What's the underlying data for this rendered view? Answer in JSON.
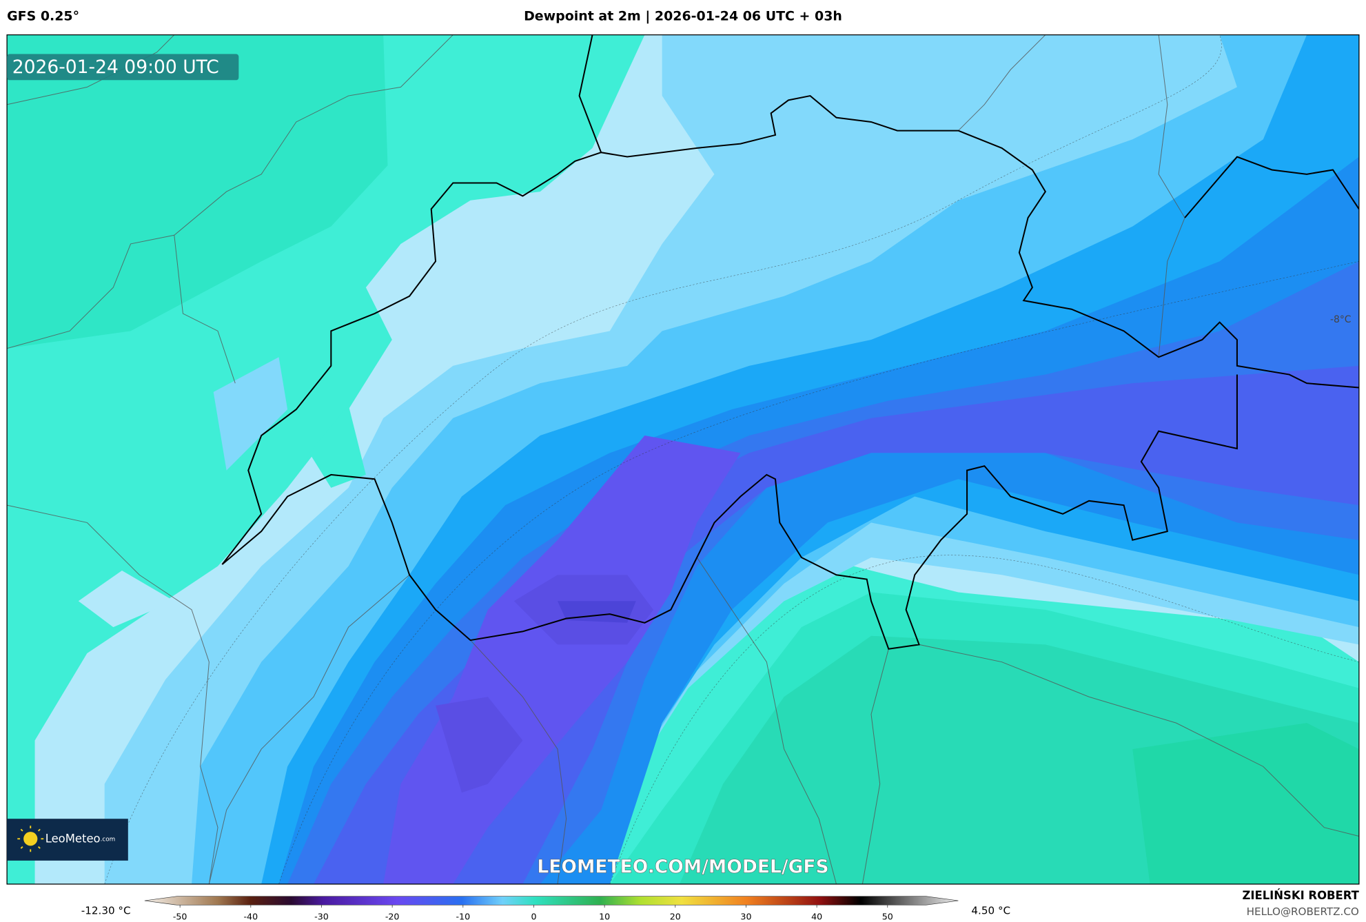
{
  "header": {
    "model": "GFS 0.25°",
    "title": "Dewpoint at 2m | 2026-01-24 06 UTC + 03h"
  },
  "valid_time": "2026-01-24 09:00 UTC",
  "logo": {
    "name": "LeoMeteo",
    "suffix": ".com"
  },
  "watermark": "LEOMETEO.COM/MODEL/GFS",
  "contour_label": "-8°C",
  "colorbar": {
    "min_label": "-12.30 °C",
    "max_label": "4.50 °C",
    "xlim": [
      -55,
      60
    ],
    "ticks": [
      -50,
      -40,
      -30,
      -20,
      -10,
      0,
      10,
      20,
      30,
      40,
      50
    ]
  },
  "credit": {
    "name": "ZIELIŃSKI ROBERT",
    "email": "HELLO@ROBERTZ.CO"
  }
}
